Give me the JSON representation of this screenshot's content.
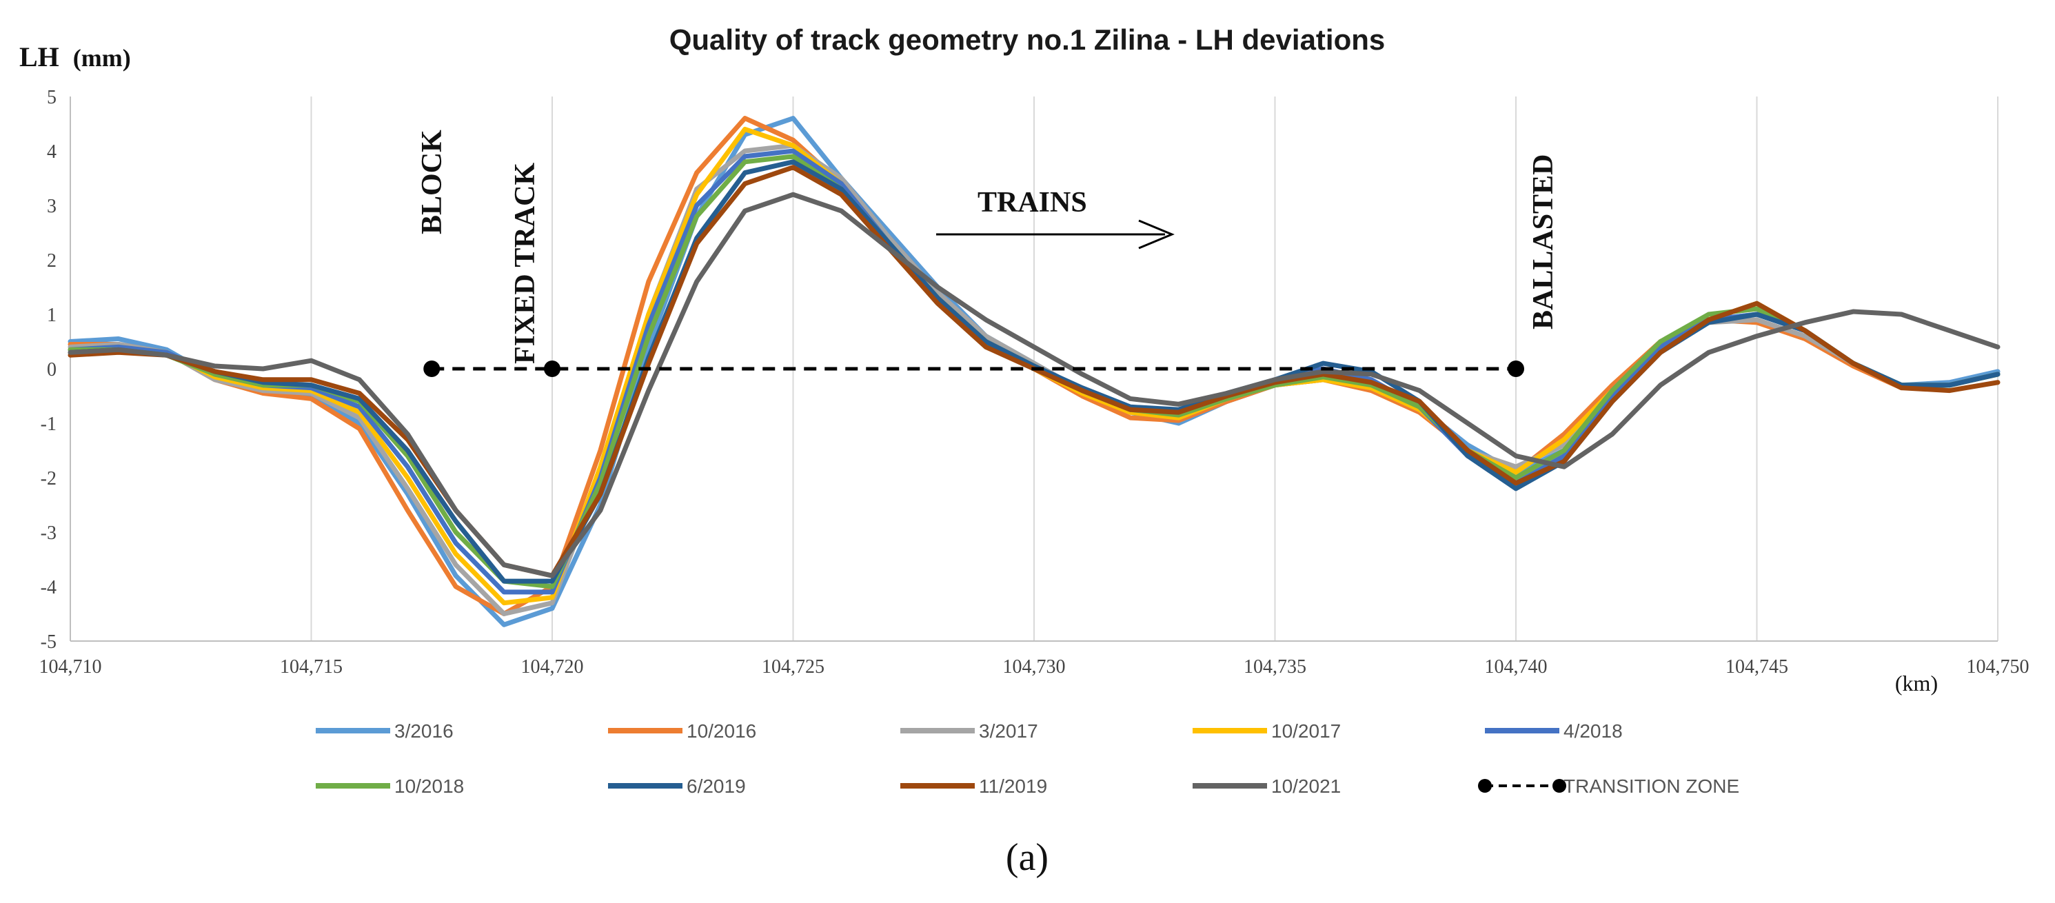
{
  "chart_data": {
    "type": "line",
    "title": "Quality of track geometry no.1 Zilina - LH deviations",
    "ylabel": "LH",
    "ylabel_unit": "(mm)",
    "xlabel": "(km)",
    "caption": "(a)",
    "ylim": [
      -5,
      5
    ],
    "xlim": [
      104.71,
      104.75
    ],
    "y_ticks": [
      5,
      4,
      3,
      2,
      1,
      0,
      -1,
      -2,
      -3,
      -4,
      -5
    ],
    "y_tick_labels": [
      "5",
      "4",
      "3",
      "2",
      "1",
      "0",
      "-1",
      "-2",
      "-3",
      "-4",
      "-5"
    ],
    "x_ticks": [
      104.71,
      104.715,
      104.72,
      104.725,
      104.73,
      104.735,
      104.74,
      104.745,
      104.75
    ],
    "x_tick_labels": [
      "104,710",
      "104,715",
      "104,720",
      "104,725",
      "104,730",
      "104,735",
      "104,740",
      "104,745",
      "104,750"
    ],
    "grid": {
      "vertical": true,
      "horizontal": false
    },
    "legend_position": "bottom",
    "x": [
      104.71,
      104.711,
      104.712,
      104.713,
      104.714,
      104.715,
      104.716,
      104.717,
      104.718,
      104.719,
      104.72,
      104.721,
      104.722,
      104.723,
      104.724,
      104.725,
      104.726,
      104.727,
      104.728,
      104.729,
      104.73,
      104.731,
      104.732,
      104.733,
      104.734,
      104.735,
      104.736,
      104.737,
      104.738,
      104.739,
      104.74,
      104.741,
      104.742,
      104.743,
      104.744,
      104.745,
      104.746,
      104.747,
      104.748,
      104.749,
      104.75
    ],
    "series": [
      {
        "name": "3/2016",
        "color": "#5b9bd5",
        "values": [
          0.5,
          0.55,
          0.35,
          -0.15,
          -0.4,
          -0.5,
          -1.0,
          -2.3,
          -3.8,
          -4.7,
          -4.4,
          -2.5,
          0.4,
          2.8,
          4.3,
          4.6,
          3.5,
          2.5,
          1.5,
          0.6,
          0.1,
          -0.4,
          -0.8,
          -1.0,
          -0.6,
          -0.3,
          -0.2,
          -0.3,
          -0.7,
          -1.4,
          -1.9,
          -1.5,
          -0.5,
          0.4,
          0.9,
          1.0,
          0.7,
          0.1,
          -0.3,
          -0.25,
          -0.05
        ]
      },
      {
        "name": "10/2016",
        "color": "#ed7d31",
        "values": [
          0.45,
          0.45,
          0.3,
          -0.2,
          -0.45,
          -0.55,
          -1.1,
          -2.6,
          -4.0,
          -4.5,
          -4.0,
          -1.5,
          1.6,
          3.6,
          4.6,
          4.2,
          3.4,
          2.4,
          1.4,
          0.5,
          0.0,
          -0.5,
          -0.9,
          -0.95,
          -0.6,
          -0.3,
          -0.2,
          -0.4,
          -0.8,
          -1.5,
          -1.9,
          -1.2,
          -0.3,
          0.5,
          0.9,
          0.85,
          0.55,
          0.05,
          -0.35,
          -0.3,
          -0.1
        ]
      },
      {
        "name": "3/2017",
        "color": "#a5a5a5",
        "values": [
          0.4,
          0.45,
          0.3,
          -0.2,
          -0.4,
          -0.45,
          -0.9,
          -2.2,
          -3.6,
          -4.5,
          -4.3,
          -2.0,
          1.0,
          3.3,
          4.0,
          4.1,
          3.5,
          2.4,
          1.4,
          0.6,
          0.1,
          -0.4,
          -0.8,
          -0.9,
          -0.55,
          -0.3,
          -0.2,
          -0.35,
          -0.75,
          -1.5,
          -1.8,
          -1.4,
          -0.4,
          0.4,
          0.85,
          0.9,
          0.6,
          0.1,
          -0.3,
          -0.3,
          -0.1
        ]
      },
      {
        "name": "10/2017",
        "color": "#ffc000",
        "values": [
          0.35,
          0.4,
          0.3,
          -0.15,
          -0.35,
          -0.4,
          -0.8,
          -2.0,
          -3.4,
          -4.3,
          -4.2,
          -1.8,
          1.0,
          3.2,
          4.4,
          4.1,
          3.4,
          2.3,
          1.3,
          0.5,
          0.0,
          -0.45,
          -0.8,
          -0.9,
          -0.55,
          -0.3,
          -0.2,
          -0.35,
          -0.75,
          -1.5,
          -1.9,
          -1.3,
          -0.4,
          0.4,
          0.9,
          1.2,
          0.7,
          0.1,
          -0.3,
          -0.3,
          -0.1
        ]
      },
      {
        "name": "4/2018",
        "color": "#4472c4",
        "values": [
          0.35,
          0.4,
          0.3,
          -0.1,
          -0.3,
          -0.35,
          -0.7,
          -1.8,
          -3.2,
          -4.1,
          -4.1,
          -2.0,
          0.8,
          3.0,
          3.9,
          4.0,
          3.4,
          2.3,
          1.3,
          0.5,
          0.05,
          -0.4,
          -0.75,
          -0.8,
          -0.5,
          -0.2,
          0.0,
          -0.2,
          -0.7,
          -1.6,
          -2.1,
          -1.6,
          -0.5,
          0.4,
          0.9,
          1.0,
          0.7,
          0.1,
          -0.3,
          -0.3,
          -0.1
        ]
      },
      {
        "name": "10/2018",
        "color": "#70ad47",
        "values": [
          0.35,
          0.35,
          0.25,
          -0.1,
          -0.3,
          -0.3,
          -0.6,
          -1.6,
          -3.0,
          -3.9,
          -4.0,
          -2.1,
          0.6,
          2.8,
          3.8,
          3.9,
          3.3,
          2.3,
          1.3,
          0.5,
          0.05,
          -0.4,
          -0.75,
          -0.85,
          -0.55,
          -0.3,
          -0.15,
          -0.3,
          -0.7,
          -1.5,
          -2.0,
          -1.5,
          -0.4,
          0.5,
          1.0,
          1.1,
          0.7,
          0.1,
          -0.3,
          -0.3,
          -0.1
        ]
      },
      {
        "name": "6/2019",
        "color": "#255e91",
        "values": [
          0.3,
          0.35,
          0.25,
          -0.05,
          -0.25,
          -0.3,
          -0.55,
          -1.5,
          -2.8,
          -3.9,
          -3.9,
          -2.3,
          0.2,
          2.4,
          3.6,
          3.8,
          3.3,
          2.3,
          1.3,
          0.5,
          0.05,
          -0.35,
          -0.7,
          -0.75,
          -0.45,
          -0.2,
          0.1,
          -0.05,
          -0.6,
          -1.6,
          -2.2,
          -1.7,
          -0.6,
          0.3,
          0.85,
          1.0,
          0.7,
          0.1,
          -0.3,
          -0.3,
          -0.1
        ]
      },
      {
        "name": "11/2019",
        "color": "#9e480e",
        "values": [
          0.25,
          0.3,
          0.25,
          -0.05,
          -0.2,
          -0.2,
          -0.45,
          -1.3,
          -2.6,
          -3.6,
          -3.8,
          -2.3,
          0.1,
          2.3,
          3.4,
          3.7,
          3.2,
          2.2,
          1.2,
          0.4,
          0.0,
          -0.4,
          -0.75,
          -0.8,
          -0.5,
          -0.25,
          -0.1,
          -0.25,
          -0.6,
          -1.5,
          -2.1,
          -1.7,
          -0.6,
          0.3,
          0.9,
          1.2,
          0.7,
          0.1,
          -0.35,
          -0.4,
          -0.25
        ]
      },
      {
        "name": "10/2021",
        "color": "#636363",
        "values": [
          0.3,
          0.35,
          0.25,
          0.05,
          0.0,
          0.15,
          -0.2,
          -1.2,
          -2.6,
          -3.6,
          -3.8,
          -2.6,
          -0.4,
          1.6,
          2.9,
          3.2,
          2.9,
          2.2,
          1.5,
          0.9,
          0.4,
          -0.1,
          -0.55,
          -0.65,
          -0.45,
          -0.2,
          -0.05,
          -0.1,
          -0.4,
          -1.0,
          -1.6,
          -1.8,
          -1.2,
          -0.3,
          0.3,
          0.6,
          0.85,
          1.05,
          1.0,
          0.7,
          0.4
        ]
      }
    ],
    "transition_zone": {
      "name": "TRANSITION ZONE",
      "x": [
        104.7175,
        104.72,
        104.74
      ],
      "y": [
        0,
        0,
        0
      ]
    },
    "annotations": [
      {
        "text": "BLOCK",
        "x": 104.7175,
        "y": 2.5
      },
      {
        "text": "FIXED TRACK",
        "x": 104.72,
        "y": 2.5
      },
      {
        "text": "TRAINS",
        "x": 104.728,
        "y": 2.5
      },
      {
        "text": "BALLASTED",
        "x": 104.74,
        "y": 2.5
      }
    ]
  }
}
